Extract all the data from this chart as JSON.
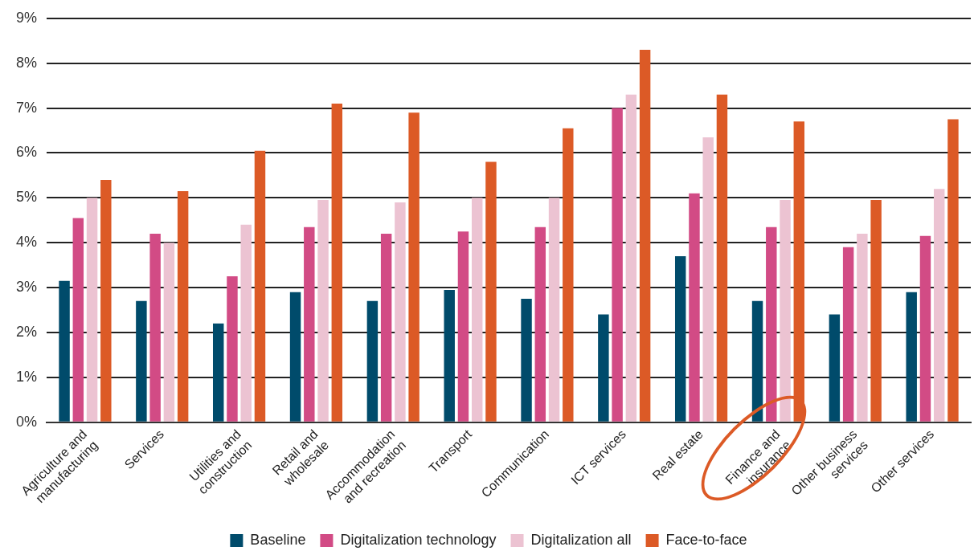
{
  "chart_data": {
    "type": "bar",
    "categories": [
      "Agriculture and manufacturing",
      "Services",
      "Utilities and construction",
      "Retail and wholesale",
      "Accommodation and recreation",
      "Transport",
      "Communication",
      "ICT services",
      "Real estate",
      "Finance and insurance",
      "Other business services",
      "Other services"
    ],
    "series": [
      {
        "name": "Baseline",
        "color": "#004b6b",
        "values": [
          3.15,
          2.7,
          2.2,
          2.9,
          2.7,
          2.95,
          2.75,
          2.4,
          3.7,
          2.7,
          2.4,
          2.9
        ]
      },
      {
        "name": "Digitalization technology",
        "color": "#d24b85",
        "values": [
          4.55,
          4.2,
          3.25,
          4.35,
          4.2,
          4.25,
          4.35,
          7.0,
          5.1,
          4.35,
          3.9,
          4.15
        ]
      },
      {
        "name": "Digitalization all",
        "color": "#ecc3d2",
        "values": [
          5.0,
          4.0,
          4.4,
          4.95,
          4.9,
          5.0,
          5.0,
          7.3,
          6.35,
          4.95,
          4.2,
          5.2
        ]
      },
      {
        "name": "Face-to-face",
        "color": "#dc5a26",
        "values": [
          5.4,
          5.15,
          6.05,
          7.1,
          6.9,
          5.8,
          6.55,
          8.3,
          7.3,
          6.7,
          4.95,
          6.75
        ]
      }
    ],
    "ylim": [
      0,
      9
    ],
    "yticks": [
      {
        "value": 0,
        "label": "0%"
      },
      {
        "value": 1,
        "label": "1%"
      },
      {
        "value": 2,
        "label": "2%"
      },
      {
        "value": 3,
        "label": "3%"
      },
      {
        "value": 4,
        "label": "4%"
      },
      {
        "value": 5,
        "label": "5%"
      },
      {
        "value": 6,
        "label": "6%"
      },
      {
        "value": 7,
        "label": "7%"
      },
      {
        "value": 8,
        "label": "8%"
      },
      {
        "value": 9,
        "label": "9%"
      }
    ],
    "grid": "y",
    "legend": "bottom"
  }
}
